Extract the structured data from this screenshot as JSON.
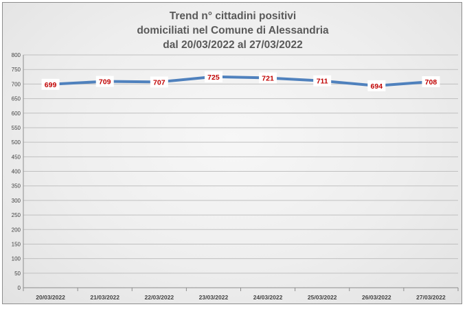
{
  "chart_data": {
    "type": "line",
    "title_lines": [
      "Trend n° cittadini positivi",
      "domiciliati nel Comune di Alessandria",
      "dal 20/03/2022 al 27/03/2022"
    ],
    "categories": [
      "20/03/2022",
      "21/03/2022",
      "22/03/2022",
      "23/03/2022",
      "24/03/2022",
      "25/03/2022",
      "26/03/2022",
      "27/03/2022"
    ],
    "series": [
      {
        "values": [
          699,
          709,
          707,
          725,
          721,
          711,
          694,
          708
        ],
        "color": "#4f81bd"
      }
    ],
    "data_labels": [
      "699",
      "709",
      "707",
      "725",
      "721",
      "711",
      "694",
      "708"
    ],
    "ylim": [
      0,
      800
    ],
    "y_ticks": [
      0,
      50,
      100,
      150,
      200,
      250,
      300,
      350,
      400,
      450,
      500,
      550,
      600,
      650,
      700,
      750,
      800
    ],
    "grid": true,
    "label_color": "#c00000"
  }
}
